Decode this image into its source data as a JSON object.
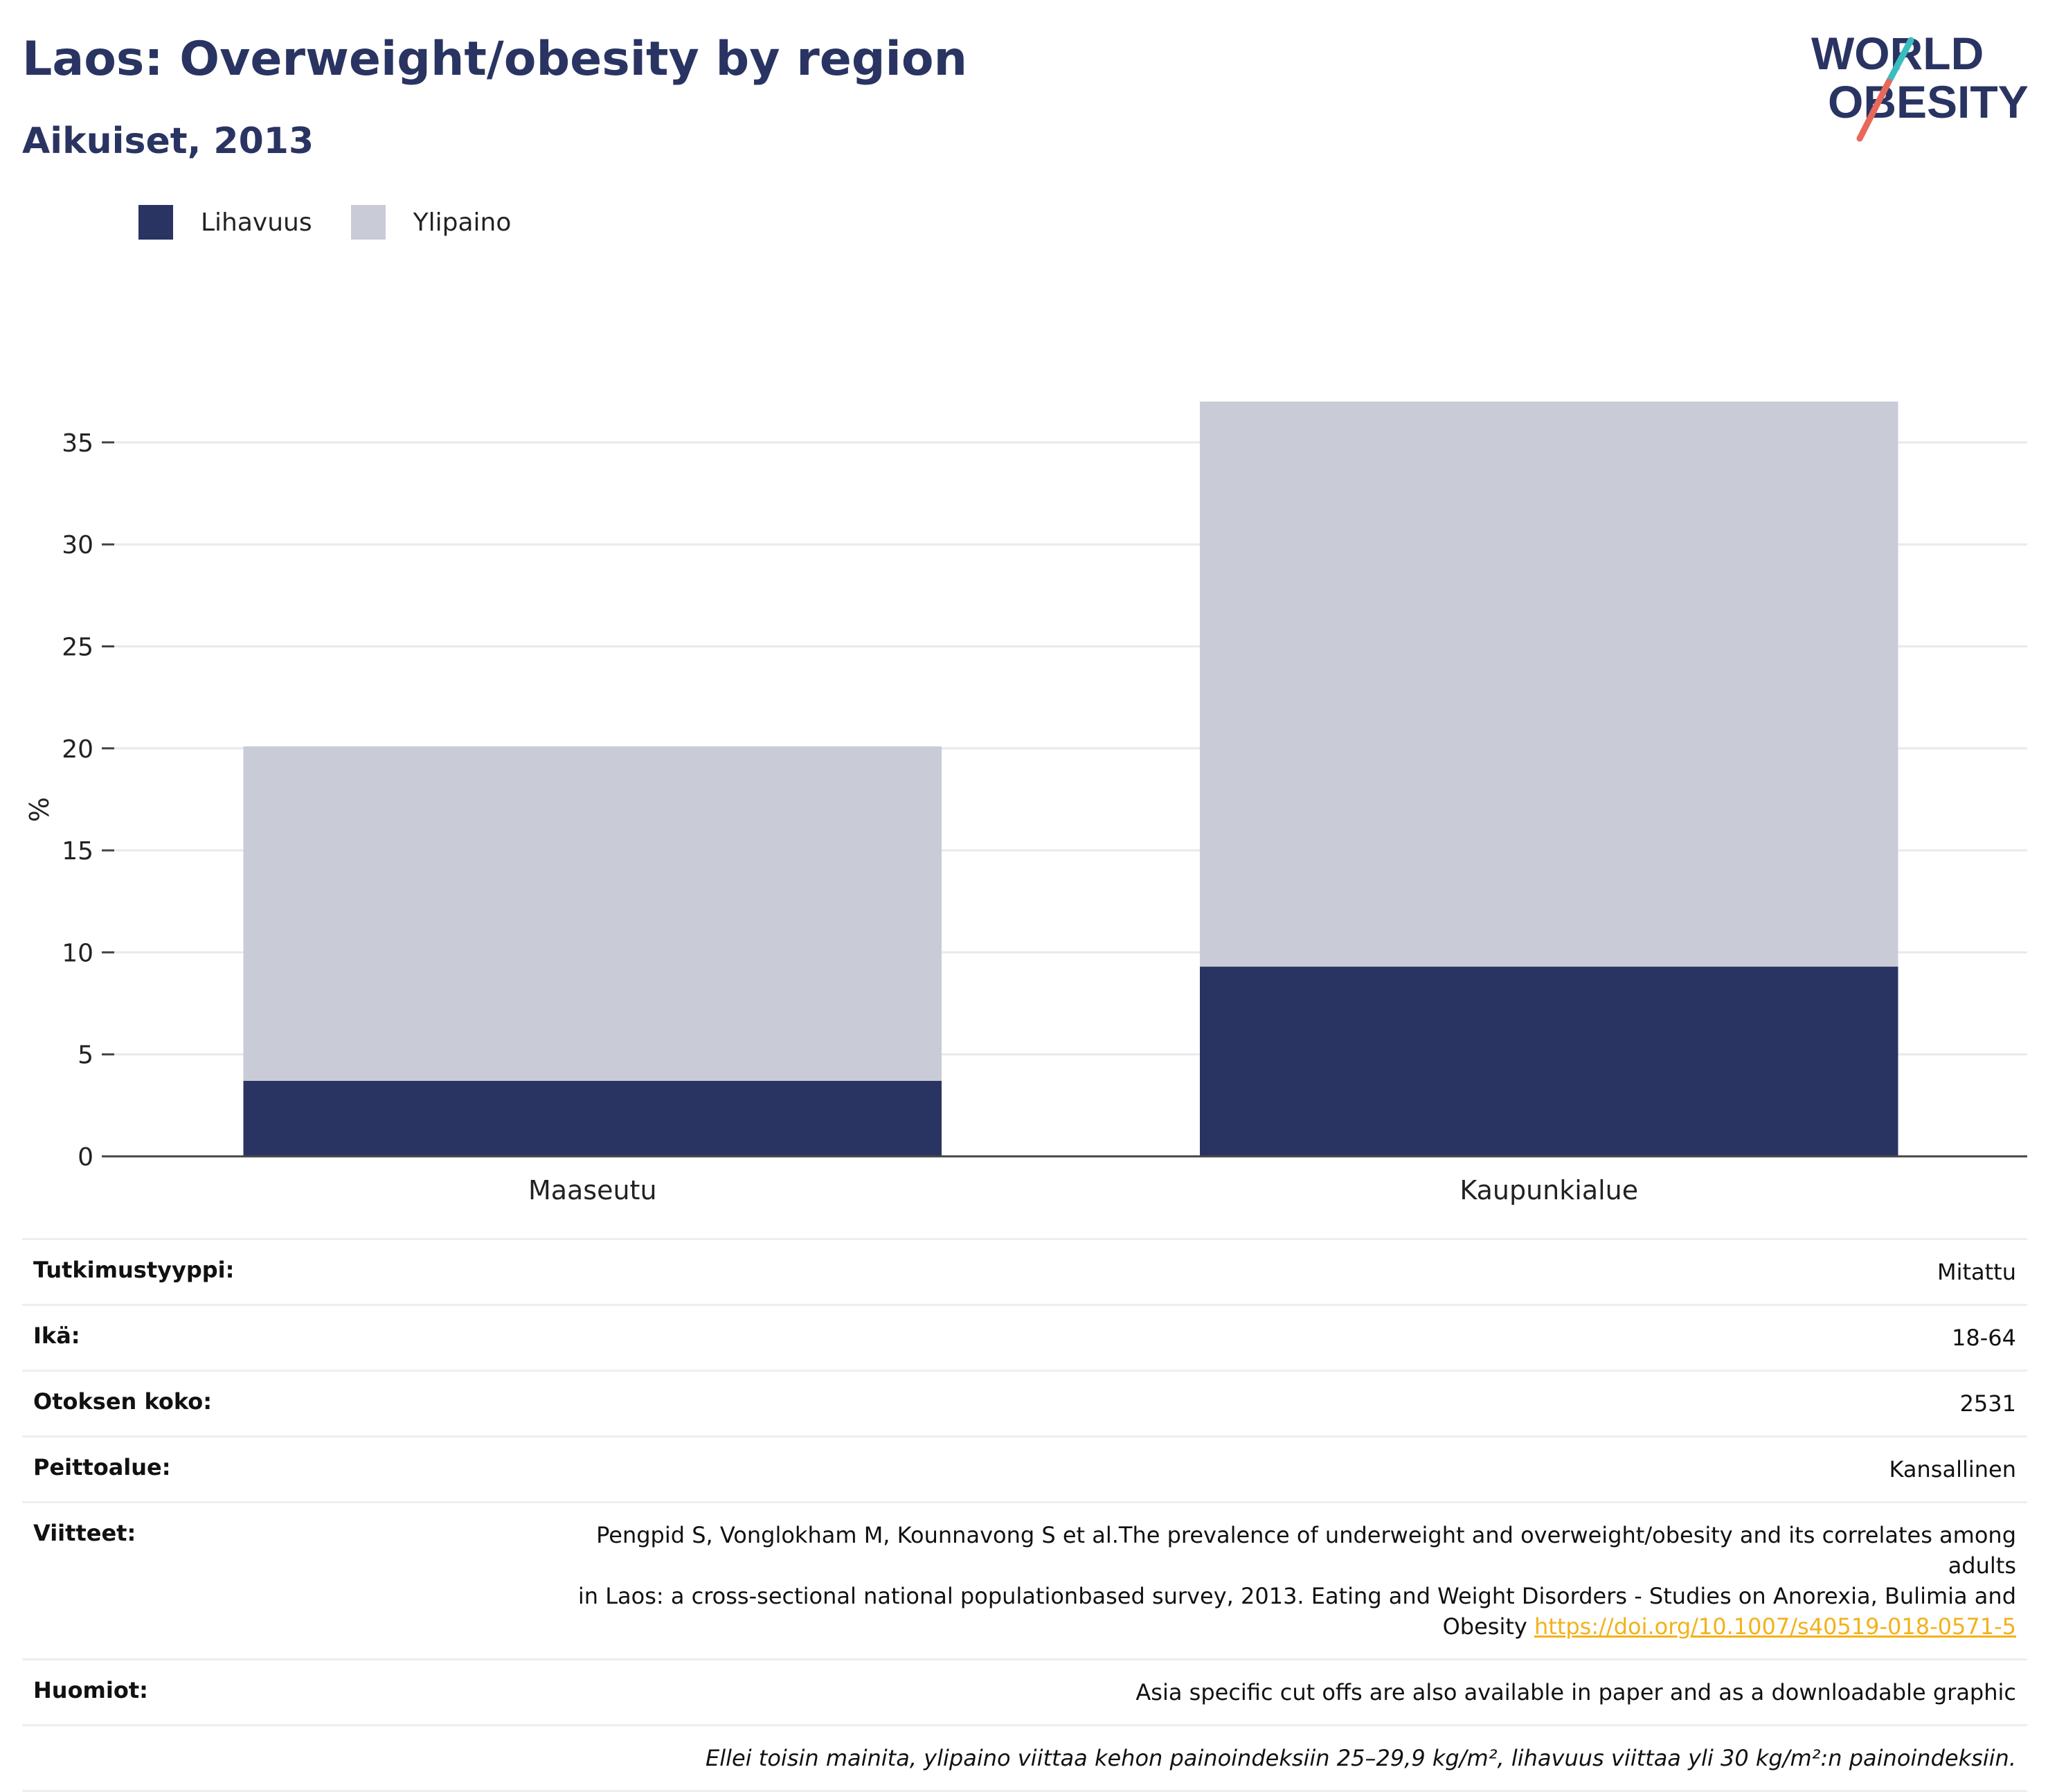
{
  "title": "Laos: Overweight/obesity by region",
  "subtitle": "Aikuiset, 2013",
  "logo": {
    "line1": "WORLD",
    "line2": "OBESITY",
    "icon": "world-obesity-logo"
  },
  "colors": {
    "obesity": "#293462",
    "overweight": "#c9cbd7",
    "title": "#293462",
    "link": "#f2b21b",
    "logo_teal": "#3bbdc0",
    "logo_red": "#e8685a"
  },
  "legend": [
    {
      "label": "Lihavuus",
      "color": "#293462"
    },
    {
      "label": "Ylipaino",
      "color": "#c9cbd7"
    }
  ],
  "chart_data": {
    "type": "bar",
    "stacked": true,
    "categories": [
      "Maaseutu",
      "Kaupunkialue"
    ],
    "series": [
      {
        "name": "Lihavuus",
        "values": [
          3.7,
          9.3
        ]
      },
      {
        "name": "Ylipaino",
        "values": [
          16.4,
          27.7
        ]
      }
    ],
    "ylabel": "%",
    "ylim": [
      0,
      37
    ],
    "yticks": [
      0,
      5,
      10,
      15,
      20,
      25,
      30,
      35
    ],
    "grid": true,
    "legend_position": "top-left"
  },
  "info": [
    {
      "label": "Tutkimustyyppi:",
      "value": "Mitattu"
    },
    {
      "label": "Ikä:",
      "value": "18-64"
    },
    {
      "label": "Otoksen koko:",
      "value": "2531"
    },
    {
      "label": "Peittoalue:",
      "value": "Kansallinen"
    }
  ],
  "references": {
    "label": "Viitteet:",
    "line1": "Pengpid S, Vonglokham M, Kounnavong S et al.The prevalence of underweight and overweight/obesity and its correlates among adults",
    "line2": "in Laos: a cross-sectional national populationbased survey, 2013. Eating and Weight Disorders - Studies on Anorexia, Bulimia and",
    "line3": "Obesity",
    "link": "https://doi.org/10.1007/s40519-018-0571-5"
  },
  "notes": {
    "label": "Huomiot:",
    "value": "Asia specific cut offs are also available in paper and as a downloadable graphic"
  },
  "footnote": "Ellei toisin mainita, ylipaino viittaa kehon painoindeksiin 25–29,9 kg/m², lihavuus viittaa yli 30 kg/m²:n painoindeksiin."
}
